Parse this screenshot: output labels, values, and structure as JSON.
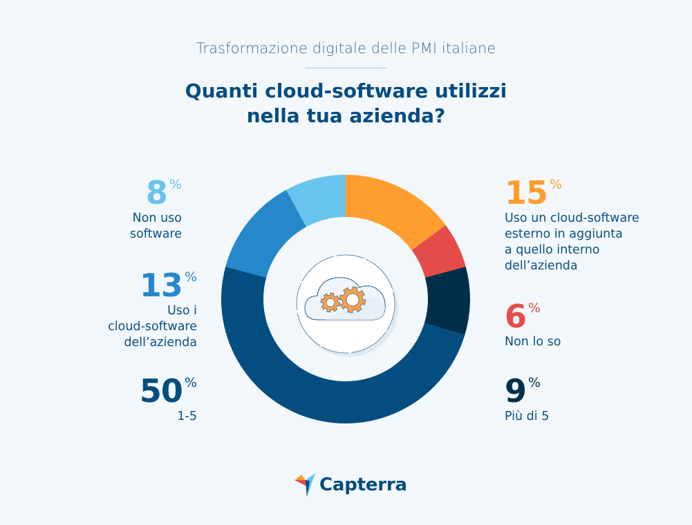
{
  "header": {
    "subtitle": "Trasformazione digitale delle PMI italiane",
    "title_line1": "Quanti cloud-software utilizzi",
    "title_line2": "nella tua azienda?"
  },
  "center_icon": "cloud-gears-icon",
  "footer": {
    "brand": "Capterra",
    "logo_icon": "capterra-arrow-icon"
  },
  "colors": {
    "background": "#f2f7fb",
    "title": "#054c81",
    "orange": "#fe9e2e",
    "red": "#e54b4b",
    "navy": "#012f4b",
    "blue": "#044d80",
    "mid_blue": "#2688cb",
    "light_blue": "#68c4ec"
  },
  "chart_data": {
    "type": "pie",
    "donut": true,
    "title": "Quanti cloud-software utilizzi nella tua azienda?",
    "subtitle": "Trasformazione digitale delle PMI italiane",
    "unit": "%",
    "start_angle_deg": 0,
    "direction": "clockwise",
    "slices": [
      {
        "label": "Uso un cloud-software esterno in aggiunta a quello interno dell’azienda",
        "value": 15,
        "color": "#fe9e2e"
      },
      {
        "label": "Non lo so",
        "value": 6,
        "color": "#e54b4b"
      },
      {
        "label": "Più di 5",
        "value": 9,
        "color": "#012f4b"
      },
      {
        "label": "1-5",
        "value": 50,
        "color": "#044d80"
      },
      {
        "label": "Uso i cloud-software dell’azienda",
        "value": 13,
        "color": "#2688cb"
      },
      {
        "label": "Non uso software",
        "value": 8,
        "color": "#68c4ec"
      }
    ],
    "legend_position": "annotations beside chart"
  },
  "labels": {
    "non_uso": {
      "num": "8",
      "pct": "%",
      "desc_lines": [
        "Non uso",
        "software"
      ]
    },
    "uso_i": {
      "num": "13",
      "pct": "%",
      "desc_lines": [
        "Uso i",
        "cloud-software",
        "dell’azienda"
      ]
    },
    "uno_cinque": {
      "num": "50",
      "pct": "%",
      "desc_lines": [
        "1-5"
      ]
    },
    "esterno": {
      "num": "15",
      "pct": "%",
      "desc_lines": [
        "Uso un cloud-software",
        "esterno in aggiunta",
        "a quello interno",
        "dell’azienda"
      ]
    },
    "non_so": {
      "num": "6",
      "pct": "%",
      "desc_lines": [
        "Non lo so"
      ]
    },
    "piu_di_5": {
      "num": "9",
      "pct": "%",
      "desc_lines": [
        "Più di 5"
      ]
    }
  }
}
